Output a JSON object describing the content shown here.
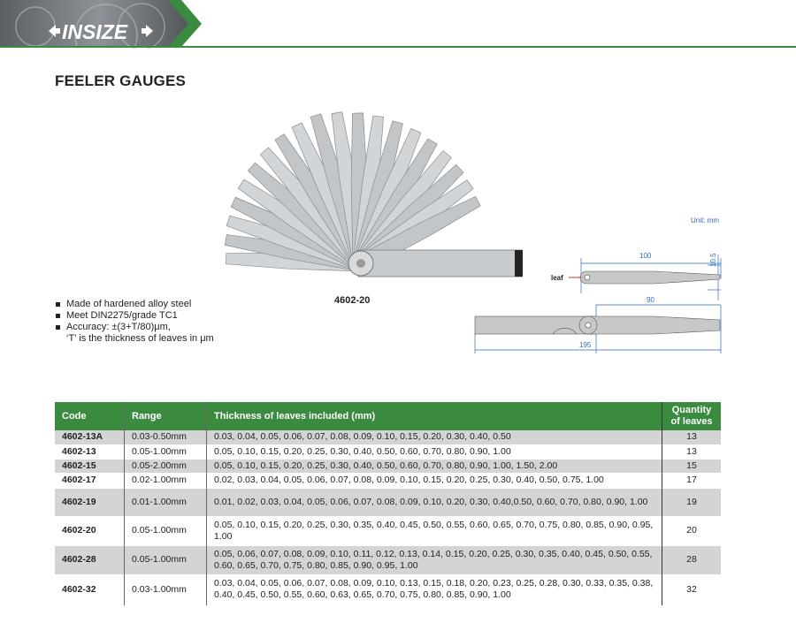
{
  "brand": {
    "logo_text": "INSIZE",
    "accent": "#3a8a3f"
  },
  "title": "FEELER GAUGES",
  "image": {
    "model_label": "4602-20"
  },
  "features": [
    "Made of hardened alloy steel",
    "Meet DIN2275/grade TC1",
    "Accuracy: ±(3+T/80)μm,",
    "‘T’ is the thickness of leaves in μm"
  ],
  "diagram": {
    "unit": "Unit: mm",
    "leaf_label": "leaf",
    "dim_leaf_length": "100",
    "dim_leaf_width": "10.5",
    "dim_exposed": "90",
    "dim_total": "195"
  },
  "table": {
    "headers": {
      "code": "Code",
      "range": "Range",
      "thickness": "Thickness of leaves included (mm)",
      "quantity": "Quantity of leaves"
    },
    "rows": [
      {
        "code": "4602-13A",
        "range": "0.03-0.50mm",
        "thickness": "0.03, 0.04, 0.05, 0.06, 0.07, 0.08, 0.09, 0.10, 0.15, 0.20, 0.30, 0.40, 0.50",
        "quantity": "13"
      },
      {
        "code": "4602-13",
        "range": "0.05-1.00mm",
        "thickness": "0.05, 0.10, 0.15, 0.20, 0.25, 0.30, 0.40, 0.50, 0.60, 0.70, 0.80, 0.90, 1.00",
        "quantity": "13"
      },
      {
        "code": "4602-15",
        "range": "0.05-2.00mm",
        "thickness": "0.05, 0.10, 0.15, 0.20, 0.25, 0.30, 0.40, 0.50, 0.60, 0.70, 0.80, 0.90, 1.00, 1.50, 2.00",
        "quantity": "15"
      },
      {
        "code": "4602-17",
        "range": "0.02-1.00mm",
        "thickness": "0.02, 0.03, 0.04, 0.05, 0.06, 0.07, 0.08, 0.09, 0.10, 0.15, 0.20, 0.25, 0.30, 0.40, 0.50, 0.75, 1.00",
        "quantity": "17"
      },
      {
        "code": "4602-19",
        "range": "0.01-1.00mm",
        "thickness": "0.01, 0.02, 0.03, 0.04, 0.05, 0.06, 0.07, 0.08, 0.09, 0.10, 0.20, 0.30, 0.40,0.50, 0.60, 0.70, 0.80, 0.90, 1.00",
        "quantity": "19"
      },
      {
        "code": "4602-20",
        "range": "0.05-1.00mm",
        "thickness": "0.05, 0.10, 0.15, 0.20, 0.25, 0.30, 0.35, 0.40, 0.45, 0.50, 0.55, 0.60, 0.65, 0.70, 0.75, 0.80, 0.85, 0.90, 0.95, 1.00",
        "quantity": "20"
      },
      {
        "code": "4602-28",
        "range": "0.05-1.00mm",
        "thickness": "0.05, 0.06, 0.07, 0.08, 0.09, 0.10, 0.11, 0.12, 0.13, 0.14, 0.15, 0.20, 0.25, 0.30, 0.35, 0.40, 0.45, 0.50, 0.55, 0.60, 0.65, 0.70, 0.75, 0.80, 0.85, 0.90, 0.95, 1.00",
        "quantity": "28"
      },
      {
        "code": "4602-32",
        "range": "0.03-1.00mm",
        "thickness": "0.03, 0.04, 0.05, 0.06, 0.07, 0.08, 0.09, 0.10, 0.13, 0.15, 0.18, 0.20, 0.23, 0.25, 0.28, 0.30, 0.33, 0.35, 0.38, 0.40, 0.45, 0.50, 0.55, 0.60, 0.63, 0.65, 0.70, 0.75, 0.80, 0.85, 0.90, 1.00",
        "quantity": "32"
      }
    ]
  }
}
